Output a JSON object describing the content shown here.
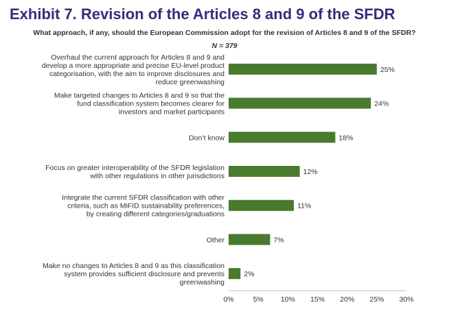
{
  "header": {
    "title": "Exhibit 7. Revision of the Articles 8 and 9 of the SFDR",
    "subtitle": "What approach, if any, should the European Commission adopt for the revision of Articles 8 and 9 of the SFDR?",
    "n_label": "N = 379"
  },
  "chart_data": {
    "type": "bar",
    "orientation": "horizontal",
    "categories": [
      [
        "Overhaul the current approach for Articles 8 and 9 and",
        "develop a more appropriate and precise EU-level product",
        "categorisation, with the aim to improve disclosures and",
        "reduce greenwashing"
      ],
      [
        "Make targeted changes to Articles 8 and 9 so that the",
        "fund classification system becomes clearer for",
        "investors and market participants"
      ],
      [
        "Don’t know"
      ],
      [
        "Focus on greater interoperability of the SFDR legislation",
        "with other regulations in other jurisdictions"
      ],
      [
        "Integrate the current SFDR classification with other",
        "criteria, such as MiFID sustainability preferences,",
        "by creating different categories/graduations"
      ],
      [
        "Other"
      ],
      [
        "Make no changes to Articles 8 and 9 as this classification",
        "system provides sufficient disclosure and prevents",
        "greenwashing"
      ]
    ],
    "values": [
      25,
      24,
      18,
      12,
      11,
      7,
      2
    ],
    "value_labels": [
      "25%",
      "24%",
      "18%",
      "12%",
      "11%",
      "7%",
      "2%"
    ],
    "xlim": [
      0,
      30
    ],
    "xticks": [
      0,
      5,
      10,
      15,
      20,
      25,
      30
    ],
    "xtick_labels": [
      "0%",
      "5%",
      "10%",
      "15%",
      "20%",
      "25%",
      "30%"
    ],
    "grid": false,
    "bar_color": "#4a7a2e"
  }
}
